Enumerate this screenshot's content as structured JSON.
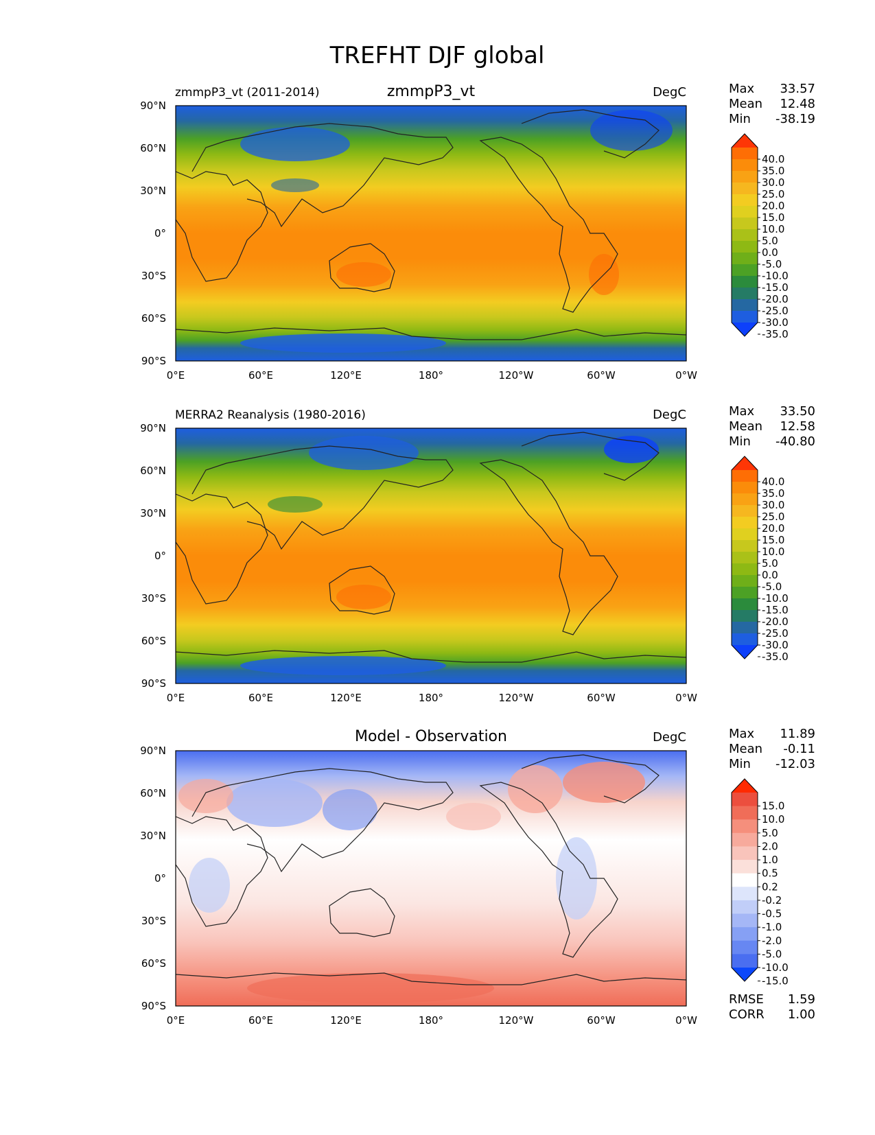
{
  "figure_title": "TREFHT DJF global",
  "lat_ticks": [
    "90°N",
    "60°N",
    "30°N",
    "0°",
    "30°S",
    "60°S",
    "90°S"
  ],
  "lon_ticks": [
    "0°E",
    "60°E",
    "120°E",
    "180°",
    "120°W",
    "60°W",
    "0°W"
  ],
  "panels": [
    {
      "left_title": "zmmpP3_vt (2011-2014)",
      "center_title": "zmmpP3_vt",
      "units": "DegC",
      "stats": [
        {
          "label": "Max",
          "value": "33.57"
        },
        {
          "label": "Mean",
          "value": "12.48"
        },
        {
          "label": "Min",
          "value": "-38.19"
        }
      ],
      "colorbar": {
        "ticks": [
          "40.0",
          "35.0",
          "30.0",
          "25.0",
          "20.0",
          "15.0",
          "10.0",
          "5.0",
          "0.0",
          "-5.0",
          "-10.0",
          "-15.0",
          "-20.0",
          "-25.0",
          "-30.0",
          "-35.0"
        ],
        "colors": [
          "#fe3606",
          "#fe6e05",
          "#fb8c0a",
          "#f9a214",
          "#f6b71f",
          "#f3cc21",
          "#e0d01f",
          "#c7c81d",
          "#aac118",
          "#8eb914",
          "#6faf19",
          "#4ca125",
          "#2b8b3c",
          "#257b65",
          "#2568a2",
          "#1e5ee0",
          "#0d40fb"
        ]
      },
      "extra_stats": []
    },
    {
      "left_title": "MERRA2 Reanalysis (1980-2016)",
      "center_title": "",
      "units": "DegC",
      "stats": [
        {
          "label": "Max",
          "value": "33.50"
        },
        {
          "label": "Mean",
          "value": "12.58"
        },
        {
          "label": "Min",
          "value": "-40.80"
        }
      ],
      "colorbar": {
        "ticks": [
          "40.0",
          "35.0",
          "30.0",
          "25.0",
          "20.0",
          "15.0",
          "10.0",
          "5.0",
          "0.0",
          "-5.0",
          "-10.0",
          "-15.0",
          "-20.0",
          "-25.0",
          "-30.0",
          "-35.0"
        ],
        "colors": [
          "#fe3606",
          "#fe6e05",
          "#fb8c0a",
          "#f9a214",
          "#f6b71f",
          "#f3cc21",
          "#e0d01f",
          "#c7c81d",
          "#aac118",
          "#8eb914",
          "#6faf19",
          "#4ca125",
          "#2b8b3c",
          "#257b65",
          "#2568a2",
          "#1e5ee0",
          "#0d40fb"
        ]
      },
      "extra_stats": []
    },
    {
      "left_title": "",
      "center_title": "Model - Observation",
      "units": "DegC",
      "stats": [
        {
          "label": "Max",
          "value": "11.89"
        },
        {
          "label": "Mean",
          "value": "-0.11"
        },
        {
          "label": "Min",
          "value": "-12.03"
        }
      ],
      "colorbar": {
        "ticks": [
          "15.0",
          "10.0",
          "5.0",
          "2.0",
          "1.0",
          "0.5",
          "0.2",
          "-0.2",
          "-0.5",
          "-1.0",
          "-2.0",
          "-5.0",
          "-10.0",
          "-15.0"
        ],
        "colors": [
          "#ff2a00",
          "#ec4f3e",
          "#f06d58",
          "#f58f7c",
          "#f7aa9c",
          "#f9c4bb",
          "#fbe0da",
          "#ffffff",
          "#dde5fb",
          "#c1cef8",
          "#a5b7f6",
          "#86a0f4",
          "#6787f2",
          "#4a6ef0",
          "#0b47fb"
        ]
      },
      "extra_stats": [
        {
          "label": "RMSE",
          "value": "1.59"
        },
        {
          "label": "CORR",
          "value": "1.00"
        }
      ]
    }
  ],
  "chart_data": {
    "type": "heatmap",
    "title": "TREFHT DJF global",
    "variable": "TREFHT",
    "season": "DJF",
    "units": "DegC",
    "panels": [
      {
        "name": "zmmpP3_vt (2011-2014)",
        "max": 33.57,
        "mean": 12.48,
        "min": -38.19,
        "levels": [
          -35,
          -30,
          -25,
          -20,
          -15,
          -10,
          -5,
          0,
          5,
          10,
          15,
          20,
          25,
          30,
          35,
          40
        ]
      },
      {
        "name": "MERRA2 Reanalysis (1980-2016)",
        "max": 33.5,
        "mean": 12.58,
        "min": -40.8,
        "levels": [
          -35,
          -30,
          -25,
          -20,
          -15,
          -10,
          -5,
          0,
          5,
          10,
          15,
          20,
          25,
          30,
          35,
          40
        ]
      },
      {
        "name": "Model - Observation",
        "max": 11.89,
        "mean": -0.11,
        "min": -12.03,
        "rmse": 1.59,
        "corr": 1.0,
        "levels": [
          -15,
          -10,
          -5,
          -2,
          -1,
          -0.5,
          -0.2,
          0.2,
          0.5,
          1,
          2,
          5,
          10,
          15
        ]
      }
    ],
    "xlim": [
      0,
      360
    ],
    "ylim": [
      -90,
      90
    ]
  }
}
